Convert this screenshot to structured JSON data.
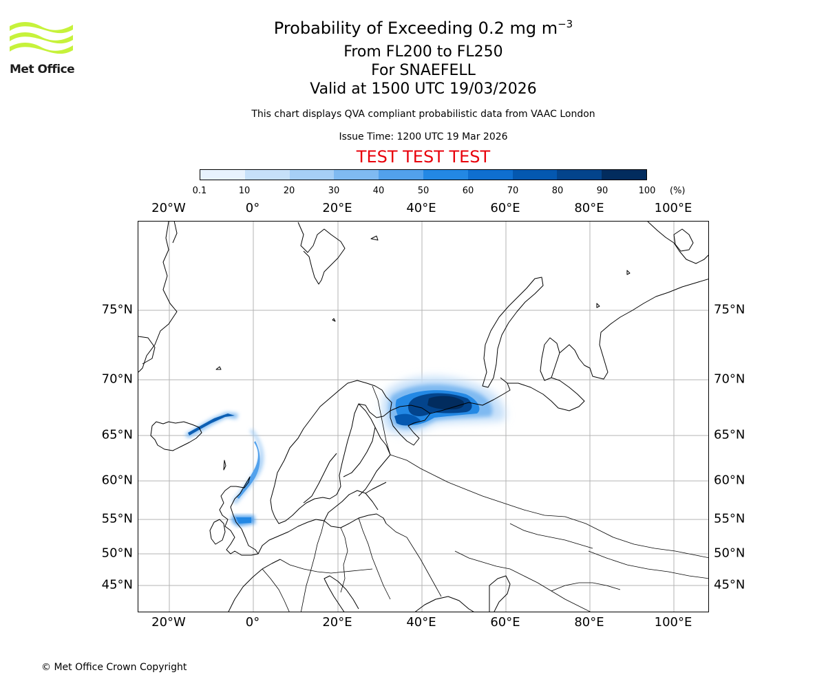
{
  "logo": {
    "text": "Met Office",
    "icon": "met-office-wave-logo",
    "color": "#c6f23b"
  },
  "titles": {
    "main": "Probability of Exceeding 0.2 mg m",
    "main_exp": "−3",
    "levels": "From FL200 to FL250",
    "volcano": "For SNAEFELL",
    "valid": "Valid at 1500 UTC 19/03/2026",
    "note": "This chart displays QVA compliant probabilistic data from VAAC London",
    "issue": "Issue Time: 1200 UTC 19 Mar 2026",
    "test": "TEST TEST TEST"
  },
  "colorbar": {
    "ticks": [
      "0.1",
      "10",
      "20",
      "30",
      "40",
      "50",
      "60",
      "70",
      "80",
      "90",
      "100"
    ],
    "unit": "(%)",
    "colors": [
      "#e8f2fd",
      "#c6e0f9",
      "#a6cff6",
      "#7fbaf1",
      "#52a1ec",
      "#2388e4",
      "#0f6fd0",
      "#0458b0",
      "#03448c",
      "#022c5e"
    ]
  },
  "map": {
    "projection": "polar stereographic",
    "lon_labels": [
      "20°W",
      "0°",
      "20°E",
      "40°E",
      "60°E",
      "80°E",
      "100°E"
    ],
    "lat_labels": [
      "75°N",
      "70°N",
      "65°N",
      "60°N",
      "55°N",
      "50°N",
      "45°N"
    ],
    "grid": true,
    "gridline_color": "#b3b3b3"
  },
  "footer": {
    "copyright": "© Met Office Crown Copyright"
  }
}
